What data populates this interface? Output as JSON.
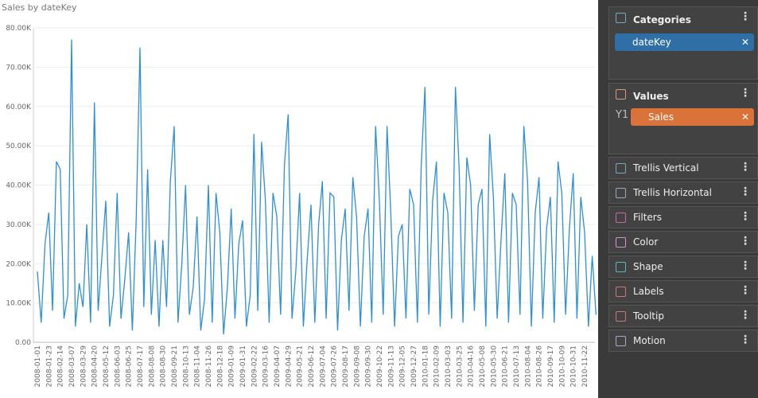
{
  "chart_data": {
    "type": "line",
    "title": "Sales by dateKey",
    "categories": [
      "2008-01-01",
      null,
      null,
      "2008-01-23",
      null,
      null,
      "2008-02-14",
      null,
      null,
      "2008-03-07",
      null,
      null,
      "2008-03-29",
      null,
      null,
      "2008-04-20",
      null,
      null,
      "2008-05-12",
      null,
      null,
      "2008-06-03",
      null,
      null,
      "2008-06-25",
      null,
      null,
      "2008-07-17",
      null,
      null,
      "2008-08-08",
      null,
      null,
      "2008-08-30",
      null,
      null,
      "2008-09-21",
      null,
      null,
      "2008-10-13",
      null,
      null,
      "2008-11-04",
      null,
      null,
      "2008-11-26",
      null,
      null,
      "2008-12-18",
      null,
      null,
      "2009-01-09",
      null,
      null,
      "2009-01-31",
      null,
      null,
      "2009-02-22",
      null,
      null,
      "2009-03-16",
      null,
      null,
      "2009-04-07",
      null,
      null,
      "2009-04-29",
      null,
      null,
      "2009-05-21",
      null,
      null,
      "2009-06-12",
      null,
      null,
      "2009-07-04",
      null,
      null,
      "2009-07-26",
      null,
      null,
      "2009-08-17",
      null,
      null,
      "2009-09-08",
      null,
      null,
      "2009-09-30",
      null,
      null,
      "2009-10-22",
      null,
      null,
      "2009-11-13",
      null,
      null,
      "2009-12-05",
      null,
      null,
      "2009-12-27",
      null,
      null,
      "2010-01-18",
      null,
      null,
      "2010-02-09",
      null,
      null,
      "2010-03-03",
      null,
      null,
      "2010-03-25",
      null,
      null,
      "2010-04-16",
      null,
      null,
      "2010-05-08",
      null,
      null,
      "2010-05-30",
      null,
      null,
      "2010-06-21",
      null,
      null,
      "2010-07-13",
      null,
      null,
      "2010-08-04",
      null,
      null,
      "2010-08-26",
      null,
      null,
      "2010-09-17",
      null,
      null,
      "2010-10-09",
      null,
      null,
      "2010-10-31",
      null,
      null,
      "2010-11-22",
      null,
      null,
      null
    ],
    "values": [
      18000,
      5000,
      25000,
      33000,
      8000,
      46000,
      44000,
      6000,
      12000,
      77000,
      4000,
      15000,
      9000,
      30000,
      5000,
      61000,
      8000,
      22000,
      36000,
      4000,
      12000,
      38000,
      6000,
      16000,
      28000,
      3000,
      31000,
      75000,
      9000,
      44000,
      7000,
      26000,
      4000,
      26000,
      9000,
      41000,
      55000,
      5000,
      20000,
      40000,
      7000,
      14000,
      32000,
      3000,
      11000,
      40000,
      5000,
      38000,
      28000,
      2000,
      14000,
      34000,
      6000,
      25000,
      31000,
      4000,
      12000,
      53000,
      8000,
      51000,
      36000,
      5000,
      38000,
      32000,
      7000,
      45000,
      58000,
      6000,
      18000,
      38000,
      4000,
      21000,
      35000,
      5000,
      30000,
      41000,
      6000,
      38000,
      37000,
      3000,
      26000,
      34000,
      8000,
      42000,
      32000,
      4000,
      27000,
      34000,
      5000,
      55000,
      36000,
      7000,
      55000,
      33000,
      4000,
      27000,
      30000,
      6000,
      39000,
      35000,
      5000,
      45000,
      65000,
      7000,
      36000,
      46000,
      4000,
      38000,
      33000,
      6000,
      65000,
      44000,
      5000,
      47000,
      40000,
      8000,
      35000,
      39000,
      4000,
      53000,
      37000,
      6000,
      26000,
      43000,
      5000,
      38000,
      35000,
      7000,
      55000,
      41000,
      4000,
      33000,
      42000,
      6000,
      29000,
      37000,
      5000,
      46000,
      38000,
      7000,
      29000,
      43000,
      6000,
      37000,
      28000,
      4000,
      22000,
      7000
    ],
    "color": "#2d8fd5",
    "ylim": [
      0,
      80000
    ],
    "yticks": [
      {
        "value": 0,
        "label": "0.00"
      },
      {
        "value": 10000,
        "label": "10.00K"
      },
      {
        "value": 20000,
        "label": "20.00K"
      },
      {
        "value": 30000,
        "label": "30.00K"
      },
      {
        "value": 40000,
        "label": "40.00K"
      },
      {
        "value": 50000,
        "label": "50.00K"
      },
      {
        "value": 60000,
        "label": "60.00K"
      },
      {
        "value": 70000,
        "label": "70.00K"
      },
      {
        "value": 80000,
        "label": "80.00K"
      }
    ],
    "grid": true
  },
  "panel": {
    "categories": {
      "title": "Categories",
      "field": "dateKey"
    },
    "values": {
      "title": "Values",
      "axis": "Y1",
      "field": "Sales"
    },
    "sections": [
      "Trellis Vertical",
      "Trellis Horizontal",
      "Filters",
      "Color",
      "Shape",
      "Labels",
      "Tooltip",
      "Motion"
    ]
  }
}
